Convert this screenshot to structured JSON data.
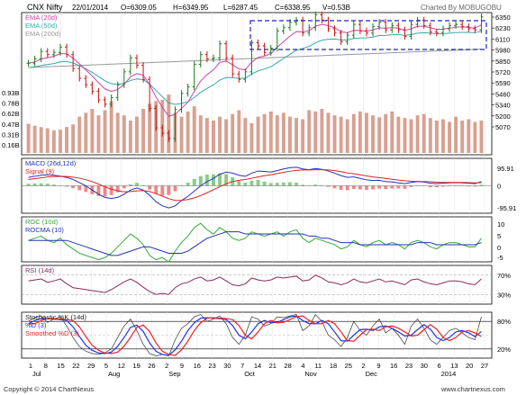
{
  "header": {
    "symbol": "CNX Nifty",
    "date": "22/01/2014",
    "open": "O=6309.05",
    "high": "H=6349.95",
    "low": "L=6287.45",
    "close": "C=6338.95",
    "volume": "V=0.53B",
    "credit": "Charted By MOBUGOBU"
  },
  "footer": {
    "copyright": "Copyright © 2014 ChartNexus",
    "site": "www.chartnexus.com"
  },
  "colors": {
    "up": "#1a7a1a",
    "down": "#cc1111",
    "ema20": "#cc44aa",
    "ema50": "#33aaaa",
    "ema200": "#999999",
    "macd": "#2233bb",
    "signal": "#dd2222",
    "hist_pos": "#88cc88",
    "hist_neg": "#ee8888",
    "roc": "#33aa33",
    "rocma": "#2233bb",
    "rsi": "#8a2a5a",
    "stoch_k": "#2233ee",
    "stoch_d": "#ee2222",
    "vol": "#d9a090",
    "box": "#2222cc"
  },
  "chart_data": {
    "type": "line",
    "subtitle": "Daily OHLC with EMA, Volume, MACD, ROC, RSI and Stochastic",
    "xaxis": {
      "ticks": [
        "1",
        "8",
        "15",
        "22",
        "29",
        "5",
        "12",
        "19",
        "26",
        "2",
        "9",
        "16",
        "23",
        "30",
        "7",
        "14",
        "21",
        "28",
        "4",
        "11",
        "18",
        "25",
        "2",
        "9",
        "16",
        "23",
        "30",
        "6",
        "13",
        "20",
        "27"
      ],
      "months": [
        "Jul",
        "Aug",
        "Sep",
        "Oct",
        "Nov",
        "Dec",
        "2014"
      ]
    },
    "price": {
      "legend": [
        "EMA (20d)",
        "EMA (50d)",
        "EMA (200d)"
      ],
      "yticks": [
        "6350",
        "6230",
        "6110",
        "5980",
        "5850",
        "5720",
        "5590",
        "5460",
        "5340",
        "5200",
        "5070"
      ],
      "ylim": [
        5050,
        6370
      ],
      "close": [
        5900,
        5940,
        6010,
        5980,
        6000,
        6050,
        5980,
        5850,
        5760,
        5700,
        5640,
        5560,
        5520,
        5580,
        5700,
        5820,
        5950,
        5880,
        5750,
        5480,
        5300,
        5250,
        5200,
        5470,
        5620,
        5680,
        5890,
        5980,
        5940,
        5950,
        6080,
        5950,
        5800,
        5750,
        5820,
        6090,
        6060,
        6000,
        6040,
        6200,
        6230,
        6280,
        6300,
        6180,
        6230,
        6350,
        6300,
        6220,
        6180,
        6100,
        6160,
        6260,
        6200,
        6180,
        6240,
        6280,
        6210,
        6250,
        6210,
        6150,
        6260,
        6300,
        6250,
        6190,
        6180,
        6220,
        6250,
        6260,
        6240,
        6220,
        6210,
        6330
      ]
    },
    "volume": {
      "yticks": [
        "0.93B",
        "0.78B",
        "0.62B",
        "0.47B",
        "0.31B",
        "0.16B"
      ],
      "values": [
        0.45,
        0.42,
        0.4,
        0.38,
        0.35,
        0.36,
        0.4,
        0.44,
        0.56,
        0.62,
        0.68,
        0.58,
        0.66,
        0.8,
        0.62,
        0.58,
        0.5,
        0.56,
        0.68,
        0.76,
        0.8,
        0.82,
        0.9,
        0.62,
        0.56,
        0.64,
        0.72,
        0.58,
        0.54,
        0.5,
        0.56,
        0.52,
        0.6,
        0.66,
        0.54,
        0.46,
        0.56,
        0.6,
        0.64,
        0.58,
        0.62,
        0.56,
        0.54,
        0.52,
        0.66,
        0.64,
        0.68,
        0.62,
        0.58,
        0.56,
        0.52,
        0.6,
        0.64,
        0.62,
        0.58,
        0.55,
        0.6,
        0.64,
        0.56,
        0.54,
        0.52,
        0.58,
        0.6,
        0.54,
        0.5,
        0.52,
        0.48,
        0.56,
        0.5,
        0.52,
        0.48,
        0.5
      ]
    },
    "macd": {
      "legend": [
        "MACD (26d,12d)",
        "Signal (9)"
      ],
      "yticks": [
        "95.91",
        "0",
        "-95.91"
      ],
      "ylim": [
        -130,
        130
      ],
      "macd": [
        40,
        45,
        50,
        52,
        50,
        46,
        40,
        30,
        15,
        0,
        -20,
        -40,
        -55,
        -60,
        -55,
        -40,
        -20,
        -10,
        -20,
        -45,
        -75,
        -95,
        -105,
        -95,
        -70,
        -50,
        -25,
        0,
        20,
        35,
        55,
        65,
        60,
        50,
        45,
        60,
        70,
        68,
        65,
        72,
        80,
        86,
        88,
        80,
        76,
        82,
        78,
        70,
        60,
        48,
        40,
        42,
        35,
        28,
        25,
        26,
        20,
        18,
        14,
        10,
        16,
        20,
        18,
        12,
        10,
        12,
        14,
        15,
        14,
        12,
        10,
        20
      ],
      "signal": [
        30,
        34,
        38,
        42,
        44,
        45,
        44,
        41,
        36,
        29,
        20,
        8,
        -5,
        -16,
        -24,
        -28,
        -27,
        -24,
        -23,
        -27,
        -37,
        -49,
        -61,
        -69,
        -69,
        -65,
        -57,
        -46,
        -33,
        -19,
        -4,
        10,
        20,
        26,
        30,
        36,
        42,
        48,
        52,
        58,
        64,
        69,
        73,
        75,
        75,
        76,
        76,
        75,
        72,
        67,
        61,
        57,
        52,
        47,
        42,
        39,
        35,
        31,
        27,
        24,
        22,
        21,
        20,
        19,
        17,
        16,
        16,
        16,
        16,
        15,
        14,
        15
      ]
    },
    "roc": {
      "legend": [
        "ROC (10d)",
        "ROCMA (10)"
      ],
      "yticks": [
        "10",
        "5",
        "0",
        "-5"
      ],
      "ylim": [
        -8,
        13
      ],
      "roc": [
        2,
        3,
        4,
        2,
        1,
        3,
        0,
        -2,
        -4,
        -5,
        -6,
        -7,
        -6,
        -4,
        -1,
        2,
        5,
        3,
        0,
        -5,
        -7,
        -6,
        -8,
        -3,
        1,
        4,
        8,
        10,
        7,
        5,
        8,
        6,
        3,
        2,
        3,
        6,
        5,
        4,
        5,
        6,
        4,
        6,
        7,
        3,
        1,
        3,
        2,
        1,
        0,
        -2,
        -1,
        2,
        0,
        -1,
        1,
        2,
        0,
        1,
        0,
        -2,
        1,
        2,
        1,
        -1,
        -2,
        0,
        1,
        1,
        0,
        -1,
        -1,
        3
      ],
      "rocma": [
        2,
        2,
        2,
        2,
        2,
        2,
        2,
        1,
        0,
        -1,
        -2,
        -3,
        -4,
        -5,
        -5,
        -4,
        -3,
        -2,
        -1,
        -1,
        -2,
        -3,
        -4,
        -4,
        -4,
        -3,
        -1,
        1,
        3,
        4,
        5,
        6,
        6,
        6,
        5,
        5,
        5,
        5,
        5,
        5,
        5,
        5,
        5,
        5,
        4,
        4,
        3,
        3,
        2,
        1,
        1,
        1,
        0,
        0,
        0,
        0,
        0,
        0,
        0,
        0,
        0,
        1,
        1,
        1,
        0,
        0,
        0,
        0,
        0,
        0,
        0,
        1
      ]
    },
    "rsi": {
      "legend": [
        "RSI (14d)"
      ],
      "yticks": [
        "70%",
        "30%"
      ],
      "ylim": [
        10,
        90
      ],
      "values": [
        58,
        60,
        62,
        55,
        58,
        62,
        52,
        44,
        42,
        40,
        38,
        36,
        34,
        40,
        48,
        56,
        62,
        55,
        45,
        36,
        30,
        32,
        30,
        44,
        52,
        55,
        62,
        66,
        58,
        60,
        66,
        58,
        50,
        48,
        52,
        64,
        60,
        58,
        60,
        66,
        64,
        66,
        68,
        58,
        60,
        70,
        64,
        56,
        54,
        50,
        54,
        62,
        56,
        54,
        58,
        62,
        56,
        58,
        54,
        50,
        60,
        62,
        56,
        52,
        50,
        54,
        58,
        58,
        56,
        52,
        50,
        62
      ]
    },
    "stochastic": {
      "legend": [
        "Stochastic %K (14d)",
        "%D (3)",
        "Smoothed %D (3)"
      ],
      "yticks": [
        "80%",
        "20%"
      ],
      "ylim": [
        0,
        100
      ],
      "k": [
        80,
        88,
        92,
        78,
        85,
        90,
        70,
        45,
        25,
        15,
        10,
        8,
        12,
        20,
        45,
        70,
        85,
        60,
        30,
        10,
        5,
        8,
        5,
        40,
        65,
        75,
        90,
        95,
        80,
        85,
        92,
        75,
        45,
        30,
        50,
        90,
        85,
        70,
        75,
        90,
        88,
        92,
        95,
        60,
        70,
        95,
        80,
        50,
        40,
        25,
        45,
        80,
        60,
        50,
        70,
        85,
        55,
        65,
        50,
        30,
        70,
        85,
        65,
        40,
        30,
        45,
        60,
        65,
        55,
        45,
        40,
        90
      ],
      "d": [
        75,
        82,
        86,
        86,
        85,
        84,
        82,
        68,
        47,
        28,
        17,
        11,
        10,
        13,
        26,
        45,
        67,
        72,
        58,
        33,
        15,
        8,
        6,
        18,
        37,
        60,
        77,
        87,
        88,
        87,
        86,
        84,
        71,
        50,
        42,
        57,
        75,
        82,
        77,
        78,
        84,
        90,
        92,
        82,
        75,
        75,
        82,
        75,
        57,
        38,
        37,
        50,
        62,
        63,
        60,
        68,
        70,
        65,
        57,
        48,
        50,
        62,
        73,
        63,
        45,
        38,
        45,
        57,
        60,
        55,
        47,
        58
      ]
    }
  }
}
